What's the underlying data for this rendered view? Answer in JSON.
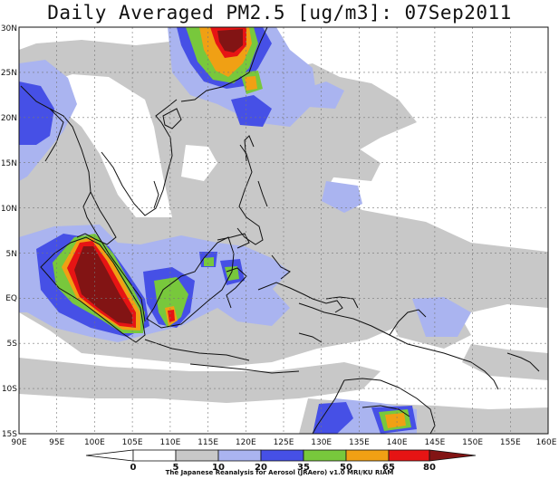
{
  "title": "Daily Averaged PM2.5 [ug/m3]: 07Sep2011",
  "map": {
    "lon_range": [
      90,
      160
    ],
    "lat_range": [
      -15,
      30
    ],
    "lon_tick_labels": [
      "90E",
      "95E",
      "100E",
      "105E",
      "110E",
      "115E",
      "120E",
      "125E",
      "130E",
      "135E",
      "140E",
      "145E",
      "150E",
      "155E",
      "160E"
    ],
    "lat_tick_labels": [
      "15S",
      "10S",
      "5S",
      "EQ",
      "5N",
      "10N",
      "15N",
      "20N",
      "25N",
      "30N"
    ],
    "gridlines": true,
    "coastlines": true
  },
  "colorbar": {
    "levels": [
      "0",
      "5",
      "10",
      "20",
      "35",
      "50",
      "65",
      "80"
    ],
    "colors": [
      "#ffffff",
      "#ffffff",
      "#c8c8c8",
      "#aab4f0",
      "#4650e6",
      "#78c83c",
      "#f0a014",
      "#e61414",
      "#821414"
    ]
  },
  "credit": "The Japanese Reanalysis for Aerosol (JRAero) v1.0 MRI/KU RIAM"
}
